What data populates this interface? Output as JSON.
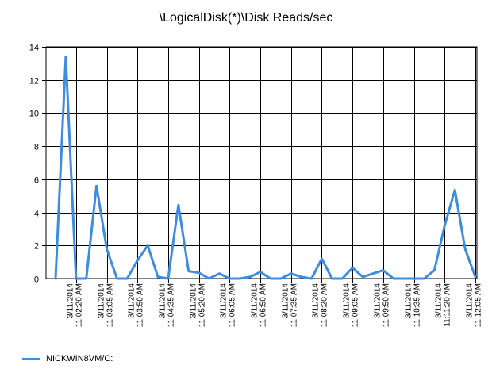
{
  "chart_data": {
    "type": "line",
    "title": "\\LogicalDisk(*)\\Disk Reads/sec",
    "xlabel": "",
    "ylabel": "",
    "ylim": [
      0,
      14
    ],
    "yticks": [
      "0",
      "2",
      "4",
      "6",
      "8",
      "10",
      "12",
      "14"
    ],
    "grid": true,
    "legend_position": "bottom-left",
    "color": "#3c8de0",
    "x": [
      "3/11/2014 11:01:50 AM",
      "3/11/2014 11:02:05 AM",
      "3/11/2014 11:02:20 AM",
      "3/11/2014 11:02:35 AM",
      "3/11/2014 11:02:50 AM",
      "3/11/2014 11:03:05 AM",
      "3/11/2014 11:03:20 AM",
      "3/11/2014 11:03:35 AM",
      "3/11/2014 11:03:50 AM",
      "3/11/2014 11:04:05 AM",
      "3/11/2014 11:04:20 AM",
      "3/11/2014 11:04:35 AM",
      "3/11/2014 11:04:50 AM",
      "3/11/2014 11:05:05 AM",
      "3/11/2014 11:05:20 AM",
      "3/11/2014 11:05:35 AM",
      "3/11/2014 11:05:50 AM",
      "3/11/2014 11:06:05 AM",
      "3/11/2014 11:06:20 AM",
      "3/11/2014 11:06:35 AM",
      "3/11/2014 11:06:50 AM",
      "3/11/2014 11:07:05 AM",
      "3/11/2014 11:07:20 AM",
      "3/11/2014 11:07:35 AM",
      "3/11/2014 11:07:50 AM",
      "3/11/2014 11:08:05 AM",
      "3/11/2014 11:08:20 AM",
      "3/11/2014 11:08:35 AM",
      "3/11/2014 11:08:50 AM",
      "3/11/2014 11:09:05 AM",
      "3/11/2014 11:09:20 AM",
      "3/11/2014 11:09:35 AM",
      "3/11/2014 11:09:50 AM",
      "3/11/2014 11:10:05 AM",
      "3/11/2014 11:10:20 AM",
      "3/11/2014 11:10:35 AM",
      "3/11/2014 11:10:50 AM",
      "3/11/2014 11:11:05 AM",
      "3/11/2014 11:11:20 AM",
      "3/11/2014 11:11:35 AM",
      "3/11/2014 11:11:50 AM",
      "3/11/2014 11:12:05 AM"
    ],
    "x_tick_labels": [
      {
        "index": 2,
        "date": "3/11/2014",
        "time": "11:02:20 AM"
      },
      {
        "index": 5,
        "date": "3/11/2014",
        "time": "11:03:05 AM"
      },
      {
        "index": 8,
        "date": "3/11/2014",
        "time": "11:03:50 AM"
      },
      {
        "index": 11,
        "date": "3/11/2014",
        "time": "11:04:35 AM"
      },
      {
        "index": 14,
        "date": "3/11/2014",
        "time": "11:05:20 AM"
      },
      {
        "index": 17,
        "date": "3/11/2014",
        "time": "11:06:05 AM"
      },
      {
        "index": 20,
        "date": "3/11/2014",
        "time": "11:06:50 AM"
      },
      {
        "index": 23,
        "date": "3/11/2014",
        "time": "11:07:35 AM"
      },
      {
        "index": 26,
        "date": "3/11/2014",
        "time": "11:08:20 AM"
      },
      {
        "index": 29,
        "date": "3/11/2014",
        "time": "11:09:05 AM"
      },
      {
        "index": 32,
        "date": "3/11/2014",
        "time": "11:09:50 AM"
      },
      {
        "index": 35,
        "date": "3/11/2014",
        "time": "11:10:35 AM"
      },
      {
        "index": 38,
        "date": "3/11/2014",
        "time": "11:11:20 AM"
      },
      {
        "index": 41,
        "date": "3/11/2014",
        "time": "11:12:05 AM"
      }
    ],
    "series": [
      {
        "name": "NICKWIN8VM/C:",
        "values": [
          0,
          13.4,
          0,
          0,
          5.6,
          1.8,
          0,
          0,
          1.1,
          2.0,
          0.1,
          0,
          4.45,
          0.45,
          0.35,
          0,
          0.3,
          0,
          0,
          0.1,
          0.4,
          0,
          0,
          0.3,
          0.1,
          0,
          1.2,
          0,
          0,
          0.65,
          0.1,
          0.3,
          0.5,
          0,
          0,
          0,
          0,
          0.5,
          3.2,
          5.35,
          1.8,
          0.1
        ]
      }
    ]
  }
}
